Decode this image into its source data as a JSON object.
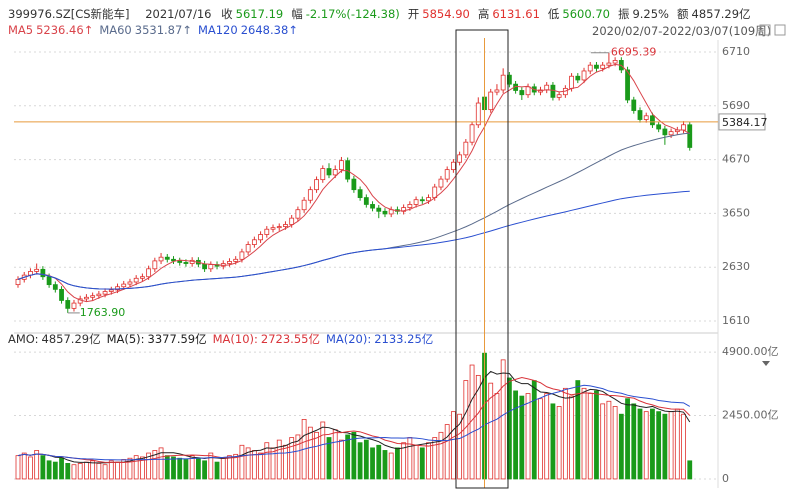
{
  "header": {
    "code": "399976.SZ[CS新能车]",
    "date": "2021/07/16",
    "fields": [
      {
        "label": "收",
        "value": "5617.19",
        "color": "#1a9a1a"
      },
      {
        "label": "幅",
        "value": "-2.17%(-124.38)",
        "color": "#1a9a1a"
      },
      {
        "label": "开",
        "value": "5854.90",
        "color": "#e0312e"
      },
      {
        "label": "高",
        "value": "6131.61",
        "color": "#e0312e"
      },
      {
        "label": "低",
        "value": "5600.70",
        "color": "#1a9a1a"
      },
      {
        "label": "振",
        "value": "9.25%",
        "color": "#333333"
      },
      {
        "label": "额",
        "value": "4857.29亿",
        "color": "#333333"
      }
    ]
  },
  "chart_data": [
    {
      "type": "candlestick",
      "date_range": "2020/02/07-2022/03/07(109周)",
      "up_color": "#e0312e",
      "down_color": "#1a9a1a",
      "legend": [
        {
          "name": "MA5",
          "value": "5236.46↑",
          "color": "#d9434a"
        },
        {
          "name": "MA60",
          "value": "3531.87↑",
          "color": "#5a6b8c"
        },
        {
          "name": "MA120",
          "value": "2648.38↑",
          "color": "#2a4fd0"
        }
      ],
      "ylim": [
        1440,
        6937
      ],
      "yticks": [
        6710,
        5690,
        4670,
        3650,
        2630,
        1610
      ],
      "grid": true,
      "open": [
        2300,
        2400,
        2480,
        2550,
        2590,
        2450,
        2300,
        2210,
        2000,
        1850,
        1950,
        2030,
        2060,
        2090,
        2120,
        2170,
        2200,
        2260,
        2310,
        2350,
        2420,
        2450,
        2600,
        2750,
        2820,
        2780,
        2750,
        2720,
        2700,
        2760,
        2690,
        2600,
        2680,
        2650,
        2700,
        2740,
        2780,
        2920,
        3060,
        3150,
        3250,
        3350,
        3380,
        3400,
        3440,
        3560,
        3720,
        3900,
        4100,
        4290,
        4500,
        4380,
        4480,
        4650,
        4300,
        4100,
        3950,
        3820,
        3750,
        3690,
        3640,
        3720,
        3690,
        3760,
        3820,
        3910,
        3890,
        3950,
        4150,
        4300,
        4480,
        4620,
        4760,
        5000,
        5330,
        5854.9,
        5617.19,
        5950,
        5990,
        6270,
        6100,
        5980,
        5900,
        6050,
        5950,
        5990,
        6080,
        5850,
        5900,
        6020,
        6250,
        6180,
        6350,
        6460,
        6400,
        6460,
        6500,
        6550,
        6370,
        5800,
        5600,
        5430,
        5500,
        5330,
        5250,
        5140,
        5200,
        5230,
        5330
      ],
      "high": [
        2460,
        2540,
        2610,
        2700,
        2650,
        2510,
        2360,
        2270,
        2060,
        2010,
        2090,
        2120,
        2150,
        2180,
        2230,
        2260,
        2320,
        2370,
        2410,
        2480,
        2510,
        2660,
        2810,
        2900,
        2880,
        2840,
        2810,
        2780,
        2820,
        2820,
        2750,
        2740,
        2740,
        2760,
        2800,
        2840,
        2980,
        3120,
        3210,
        3310,
        3410,
        3440,
        3460,
        3500,
        3620,
        3780,
        3960,
        4160,
        4350,
        4560,
        4600,
        4560,
        4720,
        4710,
        4360,
        4160,
        4010,
        3880,
        3810,
        3750,
        3780,
        3780,
        3820,
        3880,
        3970,
        3970,
        4010,
        4210,
        4360,
        4540,
        4680,
        4820,
        5060,
        5390,
        5850,
        6131.61,
        6010,
        6100,
        6400,
        6330,
        6160,
        6040,
        6110,
        6110,
        6050,
        6140,
        6140,
        5960,
        6080,
        6310,
        6310,
        6410,
        6520,
        6520,
        6520,
        6695.39,
        6610,
        6610,
        6430,
        5860,
        5660,
        5560,
        5560,
        5390,
        5310,
        5260,
        5290,
        5400,
        5390
      ],
      "low": [
        2240,
        2340,
        2420,
        2490,
        2390,
        2240,
        2150,
        1940,
        1763.9,
        1790,
        1890,
        1970,
        2000,
        2030,
        2060,
        2110,
        2140,
        2200,
        2250,
        2290,
        2360,
        2390,
        2540,
        2690,
        2720,
        2690,
        2660,
        2640,
        2640,
        2630,
        2540,
        2540,
        2590,
        2590,
        2640,
        2680,
        2720,
        2860,
        3000,
        3090,
        3190,
        3290,
        3320,
        3340,
        3380,
        3500,
        3660,
        3840,
        4040,
        4230,
        4320,
        4320,
        4420,
        4240,
        4040,
        3890,
        3760,
        3690,
        3560,
        3580,
        3580,
        3630,
        3630,
        3700,
        3760,
        3830,
        3830,
        3890,
        4090,
        4240,
        4420,
        4560,
        4700,
        4940,
        5270,
        5600.7,
        5557,
        5890,
        5930,
        6040,
        5920,
        5800,
        5840,
        5890,
        5890,
        5930,
        5790,
        5790,
        5840,
        5960,
        6120,
        6120,
        6290,
        6340,
        6340,
        6400,
        6440,
        6310,
        5740,
        5540,
        5370,
        5370,
        5270,
        5190,
        4950,
        5080,
        5140,
        5170,
        4840
      ],
      "close": [
        2400,
        2480,
        2550,
        2590,
        2450,
        2300,
        2210,
        2000,
        1850,
        1950,
        2030,
        2060,
        2090,
        2120,
        2170,
        2200,
        2260,
        2310,
        2350,
        2420,
        2450,
        2600,
        2750,
        2820,
        2780,
        2750,
        2720,
        2700,
        2760,
        2690,
        2600,
        2680,
        2650,
        2700,
        2740,
        2780,
        2920,
        3060,
        3150,
        3250,
        3350,
        3380,
        3400,
        3440,
        3560,
        3720,
        3900,
        4100,
        4290,
        4500,
        4380,
        4480,
        4650,
        4300,
        4100,
        3950,
        3820,
        3750,
        3690,
        3640,
        3720,
        3690,
        3760,
        3820,
        3910,
        3890,
        3950,
        4150,
        4300,
        4480,
        4620,
        4760,
        5000,
        5330,
        5742,
        5617.19,
        5950,
        5990,
        6270,
        6100,
        5980,
        5900,
        6050,
        5950,
        5990,
        6080,
        5850,
        5900,
        6020,
        6250,
        6180,
        6350,
        6460,
        6400,
        6460,
        6500,
        6550,
        6370,
        5800,
        5600,
        5430,
        5500,
        5330,
        5250,
        5140,
        5200,
        5230,
        5330,
        4900
      ],
      "annotations": {
        "high": "6695.39",
        "low": "1763.90"
      },
      "crosshair": 5384.17
    },
    {
      "type": "bar",
      "legend": [
        {
          "name": "AMO:",
          "value": "4857.29亿",
          "color": "#333333"
        },
        {
          "name": "MA(5):",
          "value": "3377.59亿",
          "color": "#222222"
        },
        {
          "name": "MA(10):",
          "value": "2723.55亿",
          "color": "#d9343a"
        },
        {
          "name": "MA(20):",
          "value": "2133.25亿",
          "color": "#2a4fd0"
        }
      ],
      "ylim": [
        -350,
        5367
      ],
      "yticks": [
        {
          "value": 4900,
          "label": "4900.00亿"
        },
        {
          "value": 2450,
          "label": "2450.00亿"
        },
        0
      ],
      "grid": true,
      "values": [
        900,
        1000,
        850,
        1100,
        900,
        700,
        650,
        800,
        600,
        550,
        600,
        650,
        700,
        600,
        550,
        700,
        650,
        750,
        800,
        900,
        850,
        1000,
        1100,
        1200,
        900,
        850,
        800,
        750,
        900,
        800,
        700,
        1000,
        650,
        800,
        900,
        950,
        1300,
        1200,
        1100,
        1000,
        1400,
        1200,
        1500,
        1300,
        1600,
        1700,
        2300,
        2000,
        1800,
        2200,
        1600,
        1900,
        1500,
        1700,
        1800,
        1400,
        1500,
        1200,
        1300,
        1100,
        1000,
        1200,
        1400,
        1600,
        1300,
        1200,
        1400,
        1600,
        1800,
        2100,
        2600,
        2500,
        3800,
        4400,
        4000,
        4857.29,
        3700,
        3300,
        4600,
        3900,
        3400,
        3200,
        3300,
        3800,
        3100,
        3300,
        2900,
        2800,
        3500,
        3200,
        3800,
        3500,
        3300,
        3400,
        2900,
        3000,
        2800,
        2500,
        3100,
        2900,
        2700,
        2600,
        2700,
        2600,
        2500,
        2600,
        2700,
        2500,
        700
      ]
    }
  ]
}
